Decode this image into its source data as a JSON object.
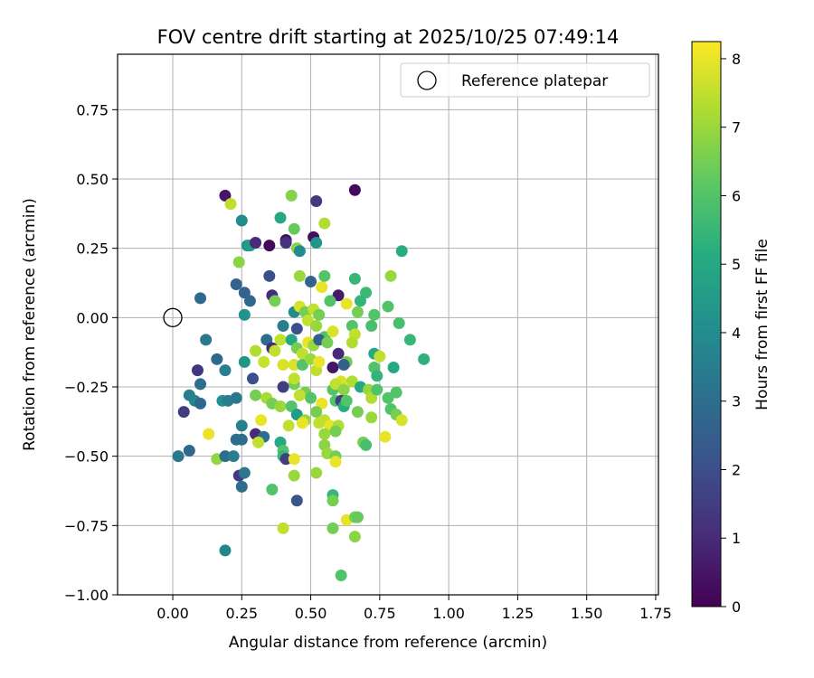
{
  "chart_data": {
    "type": "scatter",
    "title": "FOV centre drift starting at 2025/10/25 07:49:14",
    "xlabel": "Angular distance from reference (arcmin)",
    "ylabel": "Rotation from reference (arcmin)",
    "xlim": [
      -0.2,
      1.76
    ],
    "ylim": [
      -1.0,
      0.95
    ],
    "x_ticks": [
      "0.00",
      "0.25",
      "0.50",
      "0.75",
      "1.00",
      "1.25",
      "1.50",
      "1.75"
    ],
    "y_ticks": [
      "0.75",
      "0.50",
      "0.25",
      "0.00",
      "−0.25",
      "−0.50",
      "−0.75",
      "−1.00"
    ],
    "x_tick_values": [
      0,
      0.25,
      0.5,
      0.75,
      1.0,
      1.25,
      1.5,
      1.75
    ],
    "y_tick_values": [
      0.75,
      0.5,
      0.25,
      0,
      -0.25,
      -0.5,
      -0.75,
      -1.0
    ],
    "grid": true,
    "legend_placement": "top-right",
    "legend": [
      {
        "label": "Reference platepar",
        "marker": "open-circle"
      }
    ],
    "reference_point": {
      "x": 0.0,
      "y": 0.0
    },
    "colorbar": {
      "label": "Hours from first FF file",
      "range": [
        0,
        8.25
      ],
      "ticks": [
        "0",
        "1",
        "2",
        "3",
        "4",
        "5",
        "6",
        "7",
        "8"
      ],
      "tick_values": [
        0,
        1,
        2,
        3,
        4,
        5,
        6,
        7,
        8
      ],
      "colormap": "viridis"
    },
    "points": [
      {
        "x": 0.19,
        "y": 0.44,
        "h": 0.5
      },
      {
        "x": 0.21,
        "y": 0.41,
        "h": 7.5
      },
      {
        "x": 0.25,
        "y": 0.35,
        "h": 4.0
      },
      {
        "x": 0.27,
        "y": 0.26,
        "h": 4.2
      },
      {
        "x": 0.28,
        "y": 0.26,
        "h": 4.6
      },
      {
        "x": 0.3,
        "y": 0.27,
        "h": 1.0
      },
      {
        "x": 0.35,
        "y": 0.26,
        "h": 0.2
      },
      {
        "x": 0.24,
        "y": 0.2,
        "h": 6.8
      },
      {
        "x": 0.35,
        "y": 0.15,
        "h": 2.0
      },
      {
        "x": 0.23,
        "y": 0.12,
        "h": 2.6
      },
      {
        "x": 0.26,
        "y": 0.09,
        "h": 2.6
      },
      {
        "x": 0.28,
        "y": 0.06,
        "h": 2.8
      },
      {
        "x": 0.26,
        "y": 0.01,
        "h": 4.2
      },
      {
        "x": 0.1,
        "y": 0.07,
        "h": 2.8
      },
      {
        "x": 0.36,
        "y": 0.08,
        "h": 1.0
      },
      {
        "x": 0.37,
        "y": 0.06,
        "h": 6.5
      },
      {
        "x": 0.12,
        "y": -0.08,
        "h": 3.3
      },
      {
        "x": 0.16,
        "y": -0.15,
        "h": 2.8
      },
      {
        "x": 0.09,
        "y": -0.19,
        "h": 1.3
      },
      {
        "x": 0.19,
        "y": -0.19,
        "h": 3.5
      },
      {
        "x": 0.1,
        "y": -0.24,
        "h": 3.0
      },
      {
        "x": 0.06,
        "y": -0.28,
        "h": 3.5
      },
      {
        "x": 0.08,
        "y": -0.3,
        "h": 3.8
      },
      {
        "x": 0.1,
        "y": -0.31,
        "h": 2.8
      },
      {
        "x": 0.04,
        "y": -0.34,
        "h": 1.5
      },
      {
        "x": 0.18,
        "y": -0.3,
        "h": 4.2
      },
      {
        "x": 0.2,
        "y": -0.3,
        "h": 3.5
      },
      {
        "x": 0.23,
        "y": -0.29,
        "h": 3.3
      },
      {
        "x": 0.26,
        "y": -0.16,
        "h": 4.3
      },
      {
        "x": 0.25,
        "y": -0.39,
        "h": 3.6
      },
      {
        "x": 0.13,
        "y": -0.42,
        "h": 8.0
      },
      {
        "x": 0.23,
        "y": -0.44,
        "h": 3.0
      },
      {
        "x": 0.25,
        "y": -0.44,
        "h": 3.0
      },
      {
        "x": 0.06,
        "y": -0.48,
        "h": 2.8
      },
      {
        "x": 0.02,
        "y": -0.5,
        "h": 3.3
      },
      {
        "x": 0.16,
        "y": -0.51,
        "h": 6.9
      },
      {
        "x": 0.19,
        "y": -0.5,
        "h": 3.0
      },
      {
        "x": 0.22,
        "y": -0.5,
        "h": 3.5
      },
      {
        "x": 0.24,
        "y": -0.57,
        "h": 1.5
      },
      {
        "x": 0.26,
        "y": -0.56,
        "h": 3.3
      },
      {
        "x": 0.25,
        "y": -0.61,
        "h": 3.0
      },
      {
        "x": 0.19,
        "y": -0.84,
        "h": 3.8
      },
      {
        "x": 0.3,
        "y": -0.12,
        "h": 7.3
      },
      {
        "x": 0.33,
        "y": -0.16,
        "h": 7.6
      },
      {
        "x": 0.34,
        "y": -0.08,
        "h": 2.9
      },
      {
        "x": 0.36,
        "y": -0.11,
        "h": 1.0
      },
      {
        "x": 0.37,
        "y": -0.12,
        "h": 7.5
      },
      {
        "x": 0.39,
        "y": -0.08,
        "h": 7.5
      },
      {
        "x": 0.4,
        "y": -0.17,
        "h": 7.8
      },
      {
        "x": 0.29,
        "y": -0.22,
        "h": 2.0
      },
      {
        "x": 0.3,
        "y": -0.28,
        "h": 6.5
      },
      {
        "x": 0.34,
        "y": -0.29,
        "h": 7.2
      },
      {
        "x": 0.36,
        "y": -0.31,
        "h": 6.5
      },
      {
        "x": 0.39,
        "y": -0.32,
        "h": 7.0
      },
      {
        "x": 0.32,
        "y": -0.37,
        "h": 8.0
      },
      {
        "x": 0.3,
        "y": -0.42,
        "h": 1.0
      },
      {
        "x": 0.33,
        "y": -0.43,
        "h": 3.0
      },
      {
        "x": 0.31,
        "y": -0.45,
        "h": 7.5
      },
      {
        "x": 0.39,
        "y": -0.45,
        "h": 5.0
      },
      {
        "x": 0.4,
        "y": -0.48,
        "h": 6.0
      },
      {
        "x": 0.4,
        "y": -0.5,
        "h": 5.5
      },
      {
        "x": 0.41,
        "y": -0.51,
        "h": 1.5
      },
      {
        "x": 0.36,
        "y": -0.62,
        "h": 6.0
      },
      {
        "x": 0.4,
        "y": -0.76,
        "h": 7.5
      },
      {
        "x": 0.39,
        "y": 0.36,
        "h": 5.0
      },
      {
        "x": 0.43,
        "y": 0.44,
        "h": 6.7
      },
      {
        "x": 0.44,
        "y": 0.32,
        "h": 6.3
      },
      {
        "x": 0.41,
        "y": 0.28,
        "h": 0.4
      },
      {
        "x": 0.41,
        "y": 0.27,
        "h": 1.2
      },
      {
        "x": 0.45,
        "y": 0.25,
        "h": 6.8
      },
      {
        "x": 0.46,
        "y": 0.24,
        "h": 4.0
      },
      {
        "x": 0.51,
        "y": 0.29,
        "h": 0.3
      },
      {
        "x": 0.52,
        "y": 0.27,
        "h": 4.3
      },
      {
        "x": 0.52,
        "y": 0.42,
        "h": 1.4
      },
      {
        "x": 0.55,
        "y": 0.34,
        "h": 7.3
      },
      {
        "x": 0.66,
        "y": 0.46,
        "h": 0.2
      },
      {
        "x": 0.46,
        "y": 0.15,
        "h": 7.0
      },
      {
        "x": 0.5,
        "y": 0.13,
        "h": 2.6
      },
      {
        "x": 0.54,
        "y": 0.11,
        "h": 8.0
      },
      {
        "x": 0.55,
        "y": 0.15,
        "h": 6.0
      },
      {
        "x": 0.6,
        "y": 0.08,
        "h": 0.6
      },
      {
        "x": 0.66,
        "y": 0.14,
        "h": 5.5
      },
      {
        "x": 0.7,
        "y": 0.09,
        "h": 5.6
      },
      {
        "x": 0.68,
        "y": 0.06,
        "h": 5.4
      },
      {
        "x": 0.79,
        "y": 0.15,
        "h": 7.0
      },
      {
        "x": 0.78,
        "y": 0.04,
        "h": 6.0
      },
      {
        "x": 0.83,
        "y": 0.24,
        "h": 5.2
      },
      {
        "x": 0.44,
        "y": 0.02,
        "h": 4.0
      },
      {
        "x": 0.46,
        "y": 0.04,
        "h": 7.8
      },
      {
        "x": 0.48,
        "y": 0.02,
        "h": 6.5
      },
      {
        "x": 0.51,
        "y": 0.03,
        "h": 7.5
      },
      {
        "x": 0.53,
        "y": 0.01,
        "h": 6.5
      },
      {
        "x": 0.57,
        "y": 0.06,
        "h": 6.0
      },
      {
        "x": 0.63,
        "y": 0.05,
        "h": 8.0
      },
      {
        "x": 0.67,
        "y": 0.02,
        "h": 6.5
      },
      {
        "x": 0.73,
        "y": 0.01,
        "h": 6.0
      },
      {
        "x": 0.82,
        "y": -0.02,
        "h": 5.8
      },
      {
        "x": 0.4,
        "y": -0.03,
        "h": 3.5
      },
      {
        "x": 0.45,
        "y": -0.04,
        "h": 2.0
      },
      {
        "x": 0.49,
        "y": -0.01,
        "h": 7.5
      },
      {
        "x": 0.52,
        "y": -0.03,
        "h": 7.0
      },
      {
        "x": 0.55,
        "y": -0.07,
        "h": 6.0
      },
      {
        "x": 0.58,
        "y": -0.05,
        "h": 7.8
      },
      {
        "x": 0.65,
        "y": -0.03,
        "h": 6.0
      },
      {
        "x": 0.66,
        "y": -0.06,
        "h": 7.5
      },
      {
        "x": 0.65,
        "y": -0.09,
        "h": 7.3
      },
      {
        "x": 0.72,
        "y": -0.03,
        "h": 5.8
      },
      {
        "x": 0.86,
        "y": -0.08,
        "h": 5.5
      },
      {
        "x": 0.43,
        "y": -0.08,
        "h": 5.0
      },
      {
        "x": 0.45,
        "y": -0.11,
        "h": 6.5
      },
      {
        "x": 0.47,
        "y": -0.13,
        "h": 7.5
      },
      {
        "x": 0.49,
        "y": -0.09,
        "h": 8.0
      },
      {
        "x": 0.51,
        "y": -0.1,
        "h": 7.0
      },
      {
        "x": 0.53,
        "y": -0.08,
        "h": 2.5
      },
      {
        "x": 0.56,
        "y": -0.09,
        "h": 6.5
      },
      {
        "x": 0.6,
        "y": -0.13,
        "h": 1.0
      },
      {
        "x": 0.63,
        "y": -0.16,
        "h": 6.5
      },
      {
        "x": 0.73,
        "y": -0.13,
        "h": 5.0
      },
      {
        "x": 0.75,
        "y": -0.14,
        "h": 7.5
      },
      {
        "x": 0.73,
        "y": -0.18,
        "h": 6.0
      },
      {
        "x": 0.8,
        "y": -0.18,
        "h": 5.0
      },
      {
        "x": 0.91,
        "y": -0.15,
        "h": 5.3
      },
      {
        "x": 0.44,
        "y": -0.17,
        "h": 7.8
      },
      {
        "x": 0.47,
        "y": -0.17,
        "h": 6.0
      },
      {
        "x": 0.5,
        "y": -0.15,
        "h": 7.0
      },
      {
        "x": 0.52,
        "y": -0.19,
        "h": 7.5
      },
      {
        "x": 0.53,
        "y": -0.16,
        "h": 8.0
      },
      {
        "x": 0.58,
        "y": -0.18,
        "h": 0.5
      },
      {
        "x": 0.62,
        "y": -0.17,
        "h": 2.5
      },
      {
        "x": 0.74,
        "y": -0.21,
        "h": 5.4
      },
      {
        "x": 0.44,
        "y": -0.24,
        "h": 6.5
      },
      {
        "x": 0.44,
        "y": -0.22,
        "h": 7.5
      },
      {
        "x": 0.4,
        "y": -0.25,
        "h": 1.5
      },
      {
        "x": 0.46,
        "y": -0.28,
        "h": 7.0
      },
      {
        "x": 0.48,
        "y": -0.27,
        "h": 6.5
      },
      {
        "x": 0.5,
        "y": -0.29,
        "h": 6.0
      },
      {
        "x": 0.54,
        "y": -0.31,
        "h": 8.0
      },
      {
        "x": 0.58,
        "y": -0.26,
        "h": 6.0
      },
      {
        "x": 0.61,
        "y": -0.23,
        "h": 7.8
      },
      {
        "x": 0.59,
        "y": -0.24,
        "h": 7.5
      },
      {
        "x": 0.62,
        "y": -0.26,
        "h": 6.8
      },
      {
        "x": 0.65,
        "y": -0.23,
        "h": 7.3
      },
      {
        "x": 0.68,
        "y": -0.25,
        "h": 5.0
      },
      {
        "x": 0.71,
        "y": -0.26,
        "h": 7.0
      },
      {
        "x": 0.72,
        "y": -0.29,
        "h": 7.3
      },
      {
        "x": 0.74,
        "y": -0.26,
        "h": 6.0
      },
      {
        "x": 0.78,
        "y": -0.29,
        "h": 6.0
      },
      {
        "x": 0.81,
        "y": -0.27,
        "h": 6.0
      },
      {
        "x": 0.79,
        "y": -0.33,
        "h": 6.0
      },
      {
        "x": 0.81,
        "y": -0.35,
        "h": 6.5
      },
      {
        "x": 0.83,
        "y": -0.37,
        "h": 7.8
      },
      {
        "x": 0.43,
        "y": -0.32,
        "h": 6.0
      },
      {
        "x": 0.45,
        "y": -0.35,
        "h": 4.5
      },
      {
        "x": 0.46,
        "y": -0.28,
        "h": 7.5
      },
      {
        "x": 0.48,
        "y": -0.37,
        "h": 7.0
      },
      {
        "x": 0.52,
        "y": -0.34,
        "h": 6.5
      },
      {
        "x": 0.55,
        "y": -0.37,
        "h": 7.5
      },
      {
        "x": 0.57,
        "y": -0.39,
        "h": 8.0
      },
      {
        "x": 0.59,
        "y": -0.3,
        "h": 6.0
      },
      {
        "x": 0.61,
        "y": -0.3,
        "h": 1.5
      },
      {
        "x": 0.62,
        "y": -0.32,
        "h": 5.2
      },
      {
        "x": 0.63,
        "y": -0.3,
        "h": 6.0
      },
      {
        "x": 0.67,
        "y": -0.34,
        "h": 6.5
      },
      {
        "x": 0.72,
        "y": -0.36,
        "h": 7.0
      },
      {
        "x": 0.42,
        "y": -0.39,
        "h": 7.5
      },
      {
        "x": 0.47,
        "y": -0.38,
        "h": 8.0
      },
      {
        "x": 0.53,
        "y": -0.38,
        "h": 7.5
      },
      {
        "x": 0.6,
        "y": -0.39,
        "h": 7.3
      },
      {
        "x": 0.55,
        "y": -0.42,
        "h": 7.0
      },
      {
        "x": 0.59,
        "y": -0.41,
        "h": 6.5
      },
      {
        "x": 0.55,
        "y": -0.46,
        "h": 6.8
      },
      {
        "x": 0.56,
        "y": -0.49,
        "h": 7.0
      },
      {
        "x": 0.59,
        "y": -0.5,
        "h": 6.5
      },
      {
        "x": 0.59,
        "y": -0.52,
        "h": 8.0
      },
      {
        "x": 0.69,
        "y": -0.45,
        "h": 6.5
      },
      {
        "x": 0.7,
        "y": -0.46,
        "h": 5.8
      },
      {
        "x": 0.77,
        "y": -0.43,
        "h": 8.0
      },
      {
        "x": 0.44,
        "y": -0.51,
        "h": 8.0
      },
      {
        "x": 0.44,
        "y": -0.57,
        "h": 7.0
      },
      {
        "x": 0.52,
        "y": -0.56,
        "h": 7.0
      },
      {
        "x": 0.58,
        "y": -0.64,
        "h": 5.5
      },
      {
        "x": 0.58,
        "y": -0.66,
        "h": 6.5
      },
      {
        "x": 0.45,
        "y": -0.66,
        "h": 2.2
      },
      {
        "x": 0.58,
        "y": -0.76,
        "h": 6.5
      },
      {
        "x": 0.63,
        "y": -0.73,
        "h": 8.0
      },
      {
        "x": 0.66,
        "y": -0.72,
        "h": 6.5
      },
      {
        "x": 0.67,
        "y": -0.72,
        "h": 6.3
      },
      {
        "x": 0.66,
        "y": -0.79,
        "h": 6.8
      },
      {
        "x": 0.61,
        "y": -0.93,
        "h": 6.0
      }
    ]
  }
}
